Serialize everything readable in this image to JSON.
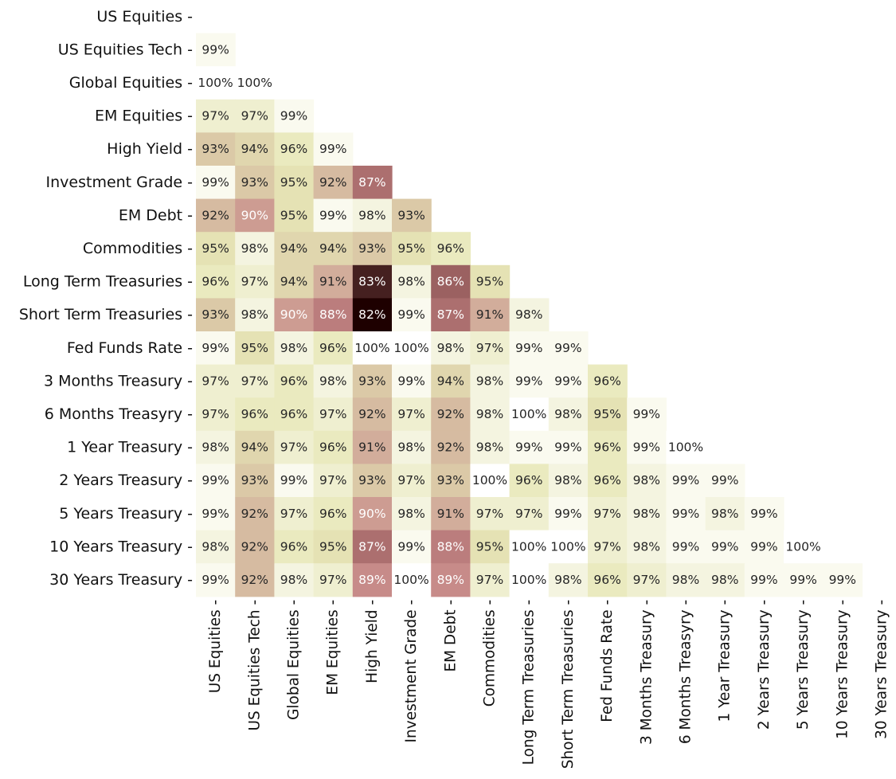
{
  "chart_data": {
    "type": "heatmap",
    "title": "",
    "xlabel": "",
    "ylabel": "",
    "format": "percent",
    "labels": [
      "US Equities",
      "US Equities Tech",
      "Global Equities",
      "EM Equities",
      "High Yield",
      "Investment Grade",
      "EM Debt",
      "Commodities",
      "Long Term Treasuries",
      "Short Term Treasuries",
      "Fed Funds Rate",
      "3 Months Treasury",
      "6 Months Treasyry",
      "1 Year Treasury",
      "2 Years Treasury",
      "5 Years Treasury",
      "10 Years Treasury",
      "30 Years Treasury"
    ],
    "lower_triangle": true,
    "values": [
      [],
      [
        99
      ],
      [
        100,
        100
      ],
      [
        97,
        97,
        99
      ],
      [
        93,
        94,
        96,
        99
      ],
      [
        99,
        93,
        95,
        92,
        87
      ],
      [
        92,
        90,
        95,
        99,
        98,
        93
      ],
      [
        95,
        98,
        94,
        94,
        93,
        95,
        96
      ],
      [
        96,
        97,
        94,
        91,
        83,
        98,
        86,
        95
      ],
      [
        93,
        98,
        90,
        88,
        82,
        99,
        87,
        91,
        98
      ],
      [
        99,
        95,
        98,
        96,
        100,
        100,
        98,
        97,
        99,
        99
      ],
      [
        97,
        97,
        96,
        98,
        93,
        99,
        94,
        98,
        99,
        99,
        96
      ],
      [
        97,
        96,
        96,
        97,
        92,
        97,
        92,
        98,
        100,
        98,
        95,
        99
      ],
      [
        98,
        94,
        97,
        96,
        91,
        98,
        92,
        98,
        99,
        99,
        96,
        99,
        100
      ],
      [
        99,
        93,
        99,
        97,
        93,
        97,
        93,
        100,
        96,
        98,
        96,
        98,
        99,
        99
      ],
      [
        99,
        92,
        97,
        96,
        90,
        98,
        91,
        97,
        97,
        99,
        97,
        98,
        99,
        98,
        99
      ],
      [
        98,
        92,
        96,
        95,
        87,
        99,
        88,
        95,
        100,
        100,
        97,
        98,
        99,
        99,
        99,
        100
      ],
      [
        99,
        92,
        98,
        97,
        89,
        100,
        89,
        97,
        100,
        98,
        96,
        97,
        98,
        98,
        99,
        99,
        99
      ]
    ],
    "colormap": "pink",
    "color_range": [
      82,
      100
    ],
    "colorbar": false,
    "grid": false
  }
}
